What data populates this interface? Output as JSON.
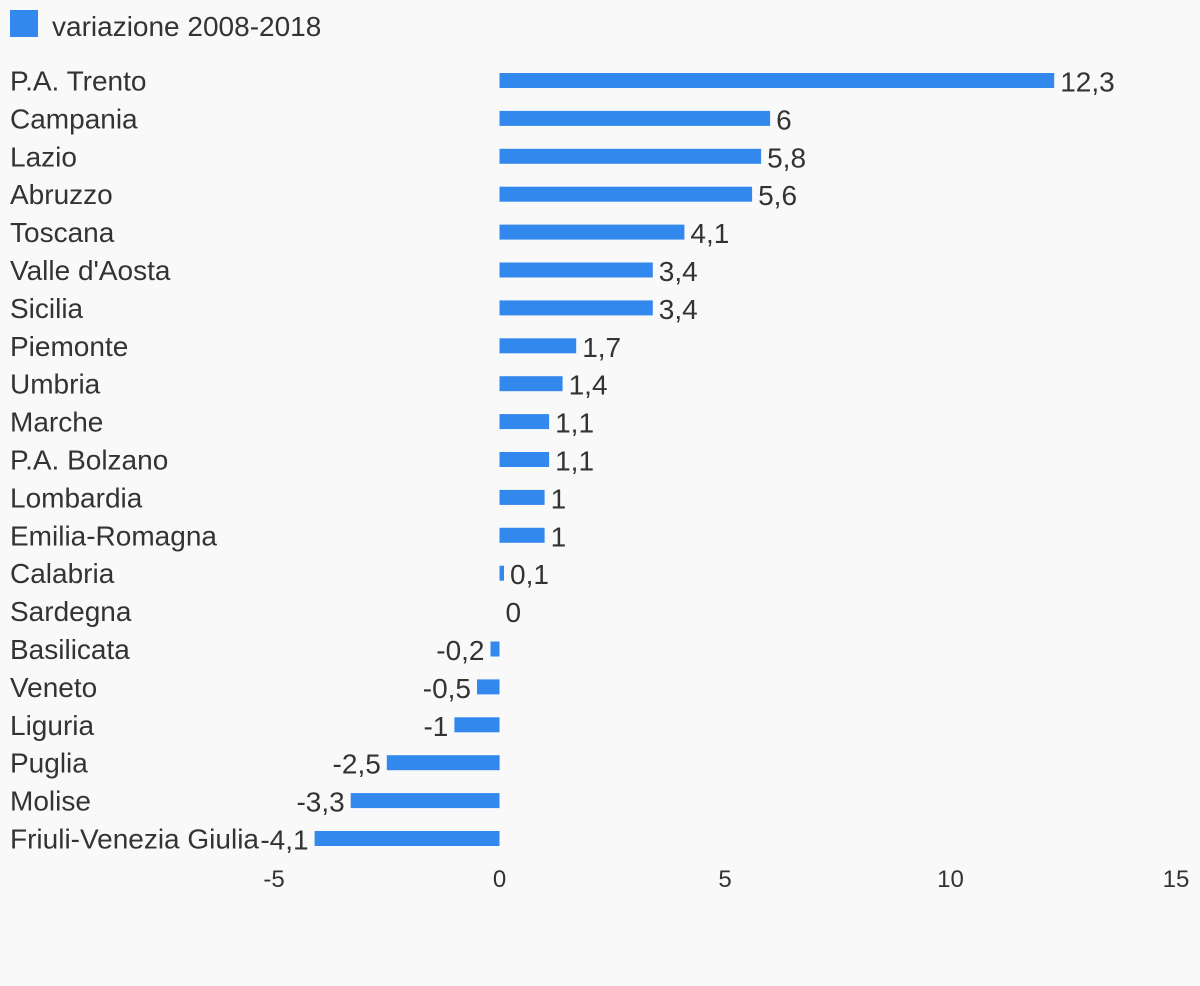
{
  "chart_data": {
    "type": "bar",
    "orientation": "horizontal",
    "legend": {
      "position": "top-left",
      "entries": [
        "variazione 2008-2018"
      ]
    },
    "series": [
      {
        "name": "variazione 2008-2018",
        "color": "#3388ee",
        "values": [
          12.3,
          6,
          5.8,
          5.6,
          4.1,
          3.4,
          3.4,
          1.7,
          1.4,
          1.1,
          1.1,
          1,
          1,
          0.1,
          0,
          -0.2,
          -0.5,
          -1,
          -2.5,
          -3.3,
          -4.1
        ]
      }
    ],
    "categories": [
      "P.A. Trento",
      "Campania",
      "Lazio",
      "Abruzzo",
      "Toscana",
      "Valle d'Aosta",
      "Sicilia",
      "Piemonte",
      "Umbria",
      "Marche",
      "P.A. Bolzano",
      "Lombardia",
      "Emilia-Romagna",
      "Calabria",
      "Sardegna",
      "Basilicata",
      "Veneto",
      "Liguria",
      "Puglia",
      "Molise",
      "Friuli-Venezia Giulia"
    ],
    "value_labels": [
      "12,3",
      "6",
      "5,8",
      "5,6",
      "4,1",
      "3,4",
      "3,4",
      "1,7",
      "1,4",
      "1,1",
      "1,1",
      "1",
      "1",
      "0,1",
      "0",
      "-0,2",
      "-0,5",
      "-1",
      "-2,5",
      "-3,3",
      "-4,1"
    ],
    "xlim": [
      -5,
      15
    ],
    "x_ticks": [
      -5,
      0,
      5,
      10,
      15
    ],
    "x_tick_labels": [
      "-5",
      "0",
      "5",
      "10",
      "15"
    ],
    "grid": false
  }
}
